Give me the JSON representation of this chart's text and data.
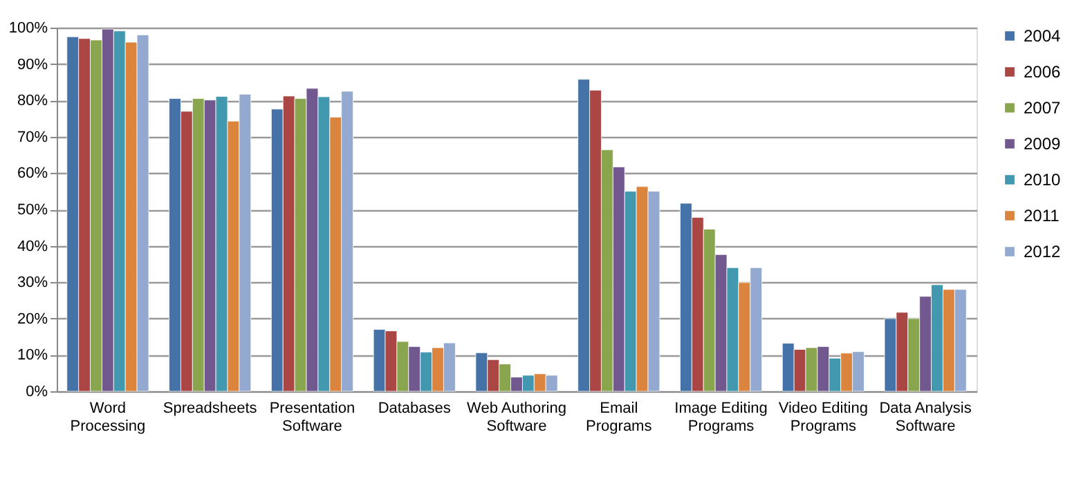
{
  "chart_data": {
    "type": "bar",
    "categories": [
      "Word Processing",
      "Spreadsheets",
      "Presentation Software",
      "Databases",
      "Web Authoring Software",
      "Email Programs",
      "Image Editing Programs",
      "Video Editing Programs",
      "Data Analysis Software"
    ],
    "series": [
      {
        "name": "2004",
        "color": "#4572a7",
        "values": [
          97.5,
          80.5,
          77.6,
          17,
          10.6,
          85.8,
          51.7,
          13.2,
          20
        ]
      },
      {
        "name": "2006",
        "color": "#aa4643",
        "values": [
          97,
          77,
          81.2,
          16.6,
          8.7,
          82.8,
          47.8,
          11.5,
          21.7
        ]
      },
      {
        "name": "2007",
        "color": "#89a54e",
        "values": [
          96.6,
          80.5,
          80.5,
          13.7,
          7.5,
          66.4,
          44.6,
          12,
          20
        ]
      },
      {
        "name": "2009",
        "color": "#71588f",
        "values": [
          99.6,
          80.1,
          83.3,
          12.3,
          3.9,
          61.7,
          37.6,
          12.3,
          26.1
        ]
      },
      {
        "name": "2010",
        "color": "#4198af",
        "values": [
          99.1,
          81.1,
          81,
          10.8,
          4.4,
          55,
          34,
          9.1,
          29.3
        ]
      },
      {
        "name": "2011",
        "color": "#db843d",
        "values": [
          96,
          74.3,
          75.4,
          12,
          4.8,
          56.3,
          29.9,
          10.5,
          28
        ]
      },
      {
        "name": "2012",
        "color": "#93a9cf",
        "values": [
          98,
          81.7,
          82.5,
          13.3,
          4.4,
          55,
          34,
          10.9,
          28
        ]
      }
    ],
    "ylim": [
      0,
      100
    ],
    "yticks": [
      {
        "value": 0,
        "label": "0%"
      },
      {
        "value": 10,
        "label": "10%"
      },
      {
        "value": 20,
        "label": "20%"
      },
      {
        "value": 30,
        "label": "30%"
      },
      {
        "value": 40,
        "label": "40%"
      },
      {
        "value": 50,
        "label": "50%"
      },
      {
        "value": 60,
        "label": "60%"
      },
      {
        "value": 70,
        "label": "70%"
      },
      {
        "value": 80,
        "label": "80%"
      },
      {
        "value": 90,
        "label": "90%"
      },
      {
        "value": 100,
        "label": "100%"
      }
    ],
    "grid": "y",
    "legend": "right"
  }
}
